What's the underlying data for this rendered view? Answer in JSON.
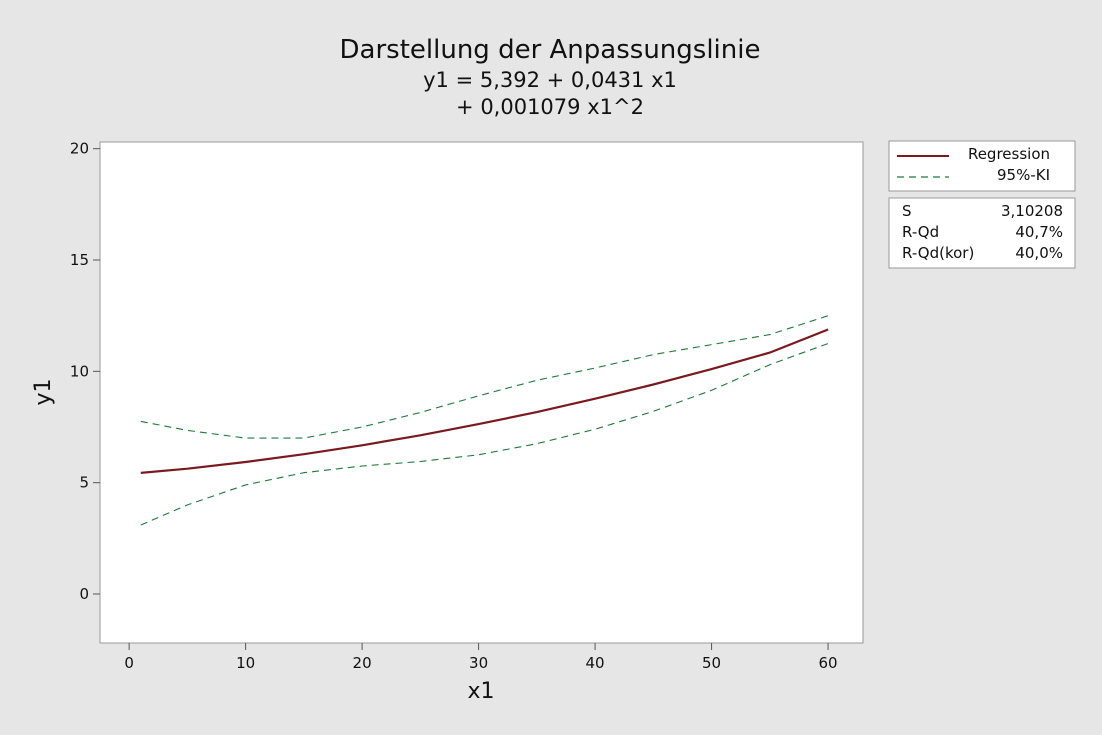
{
  "chart_data": {
    "type": "line",
    "title": "Darstellung der Anpassungslinie",
    "subtitle_lines": [
      "y1 = 5,392 + 0,0431 x1",
      "+ 0,001079 x1^2"
    ],
    "xlabel": "x1",
    "ylabel": "y1",
    "xlim": [
      -2.5,
      63
    ],
    "ylim": [
      -2.2,
      20.3
    ],
    "x_ticks": [
      0,
      10,
      20,
      30,
      40,
      50,
      60
    ],
    "y_ticks": [
      0,
      5,
      10,
      15,
      20
    ],
    "x": [
      1,
      5,
      10,
      15,
      20,
      25,
      30,
      35,
      40,
      45,
      50,
      55,
      60
    ],
    "series": [
      {
        "name": "Regression",
        "color": "#7a1a1e",
        "style": "solid",
        "values": [
          5.44,
          5.63,
          5.93,
          6.28,
          6.68,
          7.13,
          7.63,
          8.17,
          8.77,
          9.41,
          10.1,
          10.84,
          11.88
        ]
      },
      {
        "name": "95%-KI",
        "color": "#1e7a3a",
        "style": "dashed",
        "values": [
          7.75,
          7.35,
          7.0,
          7.0,
          7.5,
          8.15,
          8.9,
          9.6,
          10.15,
          10.75,
          11.2,
          11.65,
          12.5
        ]
      },
      {
        "name": "95%-KI-lower",
        "color": "#1e7a3a",
        "style": "dashed",
        "values": [
          3.1,
          4.0,
          4.9,
          5.45,
          5.75,
          5.95,
          6.25,
          6.75,
          7.4,
          8.2,
          9.15,
          10.3,
          11.25
        ]
      }
    ],
    "legend": {
      "position": "right-top",
      "entries": [
        {
          "label": "Regression",
          "color": "#7a1a1e",
          "style": "solid"
        },
        {
          "label": "95%-KI",
          "color": "#1e7a3a",
          "style": "dashed"
        }
      ]
    },
    "stats": [
      {
        "label": "S",
        "value": "3,10208"
      },
      {
        "label": "R-Qd",
        "value": "40,7%"
      },
      {
        "label": "R-Qd(kor)",
        "value": "40,0%"
      }
    ]
  }
}
